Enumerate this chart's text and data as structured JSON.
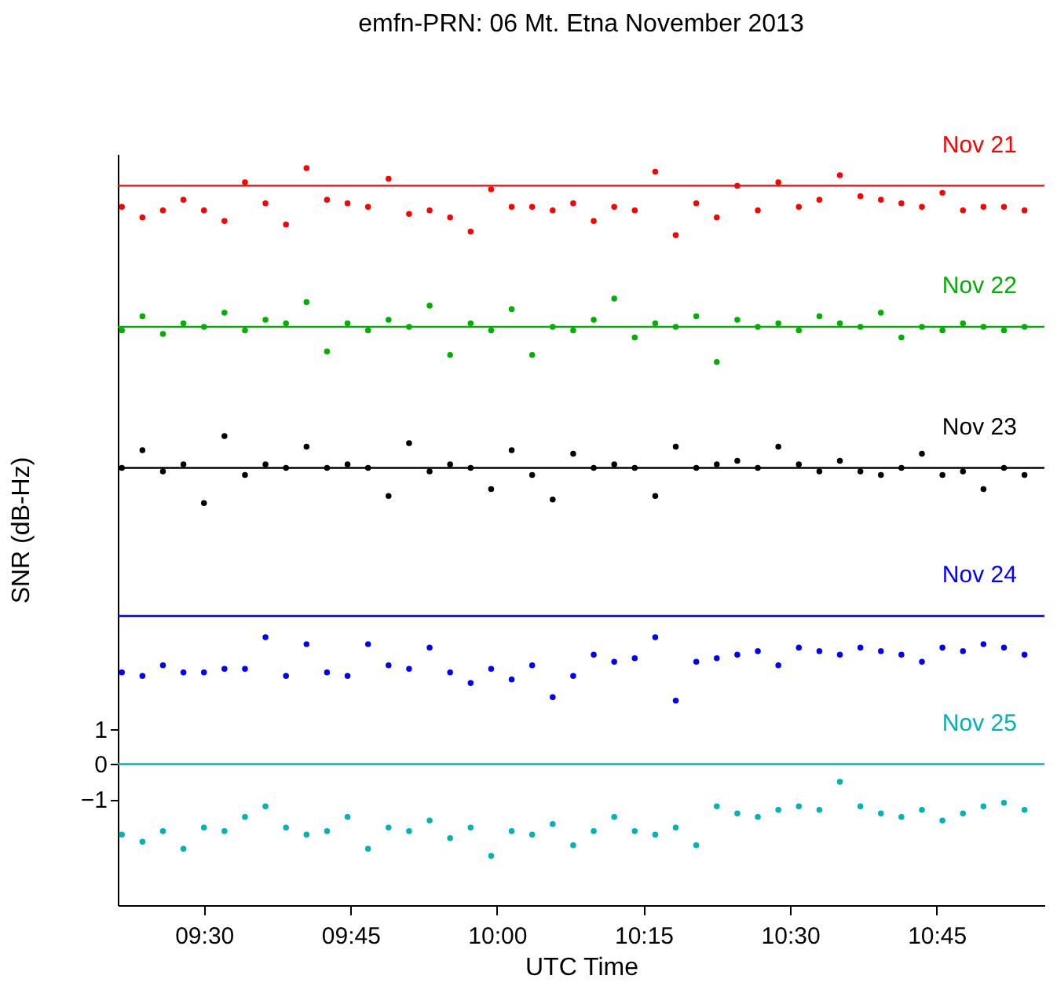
{
  "chart_data": {
    "type": "scatter",
    "title": "emfn-PRN:  06       Mt. Etna November 2013",
    "xlabel": "UTC Time",
    "ylabel": "SNR (dB-Hz)",
    "x": [
      9.36,
      9.395,
      9.43,
      9.465,
      9.5,
      9.535,
      9.57,
      9.605,
      9.64,
      9.675,
      9.71,
      9.745,
      9.78,
      9.815,
      9.85,
      9.885,
      9.92,
      9.955,
      9.99,
      10.025,
      10.06,
      10.095,
      10.13,
      10.165,
      10.2,
      10.235,
      10.27,
      10.305,
      10.34,
      10.375,
      10.41,
      10.445,
      10.48,
      10.515,
      10.55,
      10.585,
      10.62,
      10.655,
      10.69,
      10.725,
      10.76,
      10.795,
      10.83,
      10.865,
      10.9
    ],
    "series": [
      {
        "name": "Nov 21",
        "color": "#ff0000",
        "values": [
          15.8,
          15.5,
          15.7,
          16.0,
          15.7,
          15.4,
          16.5,
          15.9,
          15.3,
          16.9,
          16.0,
          15.9,
          15.8,
          16.6,
          15.6,
          15.7,
          15.5,
          15.1,
          16.3,
          15.8,
          15.8,
          15.7,
          15.9,
          15.4,
          15.8,
          15.7,
          16.8,
          15.0,
          15.9,
          15.5,
          16.4,
          15.7,
          16.5,
          15.8,
          16.0,
          16.7,
          16.1,
          16.0,
          15.9,
          15.8,
          16.2,
          15.7,
          15.8,
          15.8,
          15.7
        ]
      },
      {
        "name": "Nov 22",
        "color": "#00b000",
        "values": [
          12.3,
          12.7,
          12.2,
          12.5,
          12.4,
          12.8,
          12.3,
          12.6,
          12.5,
          13.1,
          11.7,
          12.5,
          12.3,
          12.6,
          12.4,
          13.0,
          11.6,
          12.5,
          12.3,
          12.9,
          11.6,
          12.4,
          12.3,
          12.6,
          13.2,
          12.1,
          12.5,
          12.4,
          12.7,
          11.4,
          12.6,
          12.4,
          12.5,
          12.3,
          12.7,
          12.5,
          12.4,
          12.8,
          12.1,
          12.4,
          12.3,
          12.5,
          12.4,
          12.3,
          12.4
        ]
      },
      {
        "name": "Nov 23",
        "color": "#000000",
        "values": [
          8.4,
          8.9,
          8.3,
          8.5,
          7.4,
          9.3,
          8.2,
          8.5,
          8.4,
          9.0,
          8.4,
          8.5,
          8.4,
          7.6,
          9.1,
          8.3,
          8.5,
          8.4,
          7.8,
          8.9,
          8.2,
          7.5,
          8.8,
          8.4,
          8.5,
          8.4,
          7.6,
          9.0,
          8.4,
          8.5,
          8.6,
          8.4,
          9.0,
          8.5,
          8.3,
          8.6,
          8.3,
          8.2,
          8.4,
          8.8,
          8.2,
          8.3,
          7.8,
          8.4,
          8.2
        ]
      },
      {
        "name": "Nov 24",
        "color": "#0000ff",
        "values": [
          2.6,
          2.5,
          2.8,
          2.6,
          2.6,
          2.7,
          2.7,
          3.6,
          2.5,
          3.4,
          2.6,
          2.5,
          3.4,
          2.8,
          2.7,
          3.3,
          2.6,
          2.3,
          2.7,
          2.4,
          2.8,
          1.9,
          2.5,
          3.1,
          2.9,
          3.0,
          3.6,
          1.8,
          2.9,
          3.0,
          3.1,
          3.2,
          2.8,
          3.3,
          3.2,
          3.1,
          3.3,
          3.2,
          3.1,
          2.9,
          3.3,
          3.2,
          3.4,
          3.3,
          3.1
        ]
      },
      {
        "name": "Nov 25",
        "color": "#00b4b4",
        "values": [
          -2.0,
          -2.2,
          -1.9,
          -2.4,
          -1.8,
          -1.9,
          -1.5,
          -1.2,
          -1.8,
          -2.0,
          -1.9,
          -1.5,
          -2.4,
          -1.8,
          -1.9,
          -1.6,
          -2.1,
          -1.8,
          -2.6,
          -1.9,
          -2.0,
          -1.7,
          -2.3,
          -1.9,
          -1.5,
          -1.9,
          -2.0,
          -1.8,
          -2.3,
          -1.2,
          -1.4,
          -1.5,
          -1.3,
          -1.2,
          -1.3,
          -0.5,
          -1.2,
          -1.4,
          -1.5,
          -1.3,
          -1.6,
          -1.4,
          -1.2,
          -1.1,
          -1.3
        ]
      }
    ],
    "ref_lines": [
      {
        "axis": "y",
        "value": 16.4,
        "color": "#ff0000"
      },
      {
        "axis": "y",
        "value": 12.4,
        "color": "#00b000"
      },
      {
        "axis": "y",
        "value": 8.4,
        "color": "#000000"
      },
      {
        "axis": "y",
        "value": 4.2,
        "color": "#0000ff"
      },
      {
        "axis": "y",
        "value": 0,
        "color": "#00b4b4"
      }
    ],
    "xlim": [
      9.353,
      10.934
    ],
    "xticks": [
      {
        "value": 9.5,
        "label": "09:30"
      },
      {
        "value": 9.75,
        "label": "09:45"
      },
      {
        "value": 10,
        "label": "10:00"
      },
      {
        "value": 10.25,
        "label": "10:15"
      },
      {
        "value": 10.5,
        "label": "10:30"
      },
      {
        "value": 10.75,
        "label": "10:45"
      }
    ],
    "ylim": [
      -4.0,
      17.3
    ],
    "yticks": [
      1,
      0,
      {
        "value": -1,
        "label": "−1"
      }
    ],
    "marker": "circle",
    "grid": false
  }
}
